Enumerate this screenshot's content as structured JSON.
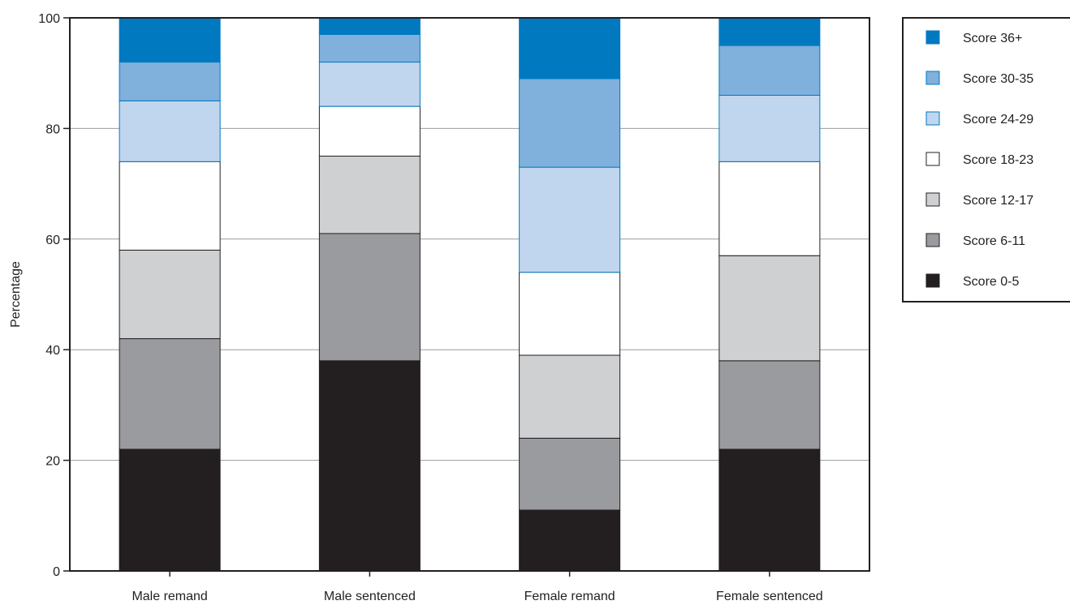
{
  "chart_data": {
    "type": "bar",
    "stacked": true,
    "title": "",
    "xlabel": "",
    "ylabel": "Percentage",
    "ylim": [
      0,
      100
    ],
    "yticks": [
      0,
      20,
      40,
      60,
      80,
      100
    ],
    "grid": true,
    "legend_position": "right",
    "categories": [
      "Male remand",
      "Male sentenced",
      "Female remand",
      "Female sentenced"
    ],
    "series": [
      {
        "name": "Score 0-5",
        "color": "#231f20",
        "values": [
          22,
          38,
          11,
          22
        ]
      },
      {
        "name": "Score 6-11",
        "color": "#9a9b9e",
        "values": [
          20,
          23,
          13,
          16
        ]
      },
      {
        "name": "Score 12-17",
        "color": "#cfd0d2",
        "values": [
          16,
          14,
          15,
          19
        ]
      },
      {
        "name": "Score 18-23",
        "color": "#ffffff",
        "values": [
          16,
          9,
          15,
          17
        ]
      },
      {
        "name": "Score 24-29",
        "color": "#c0d6ee",
        "values": [
          11,
          8,
          19,
          12
        ]
      },
      {
        "name": "Score 30-35",
        "color": "#80b0dc",
        "values": [
          7,
          5,
          16,
          9
        ]
      },
      {
        "name": "Score 36+",
        "color": "#0079c1",
        "values": [
          8,
          3,
          11,
          5
        ]
      }
    ]
  }
}
